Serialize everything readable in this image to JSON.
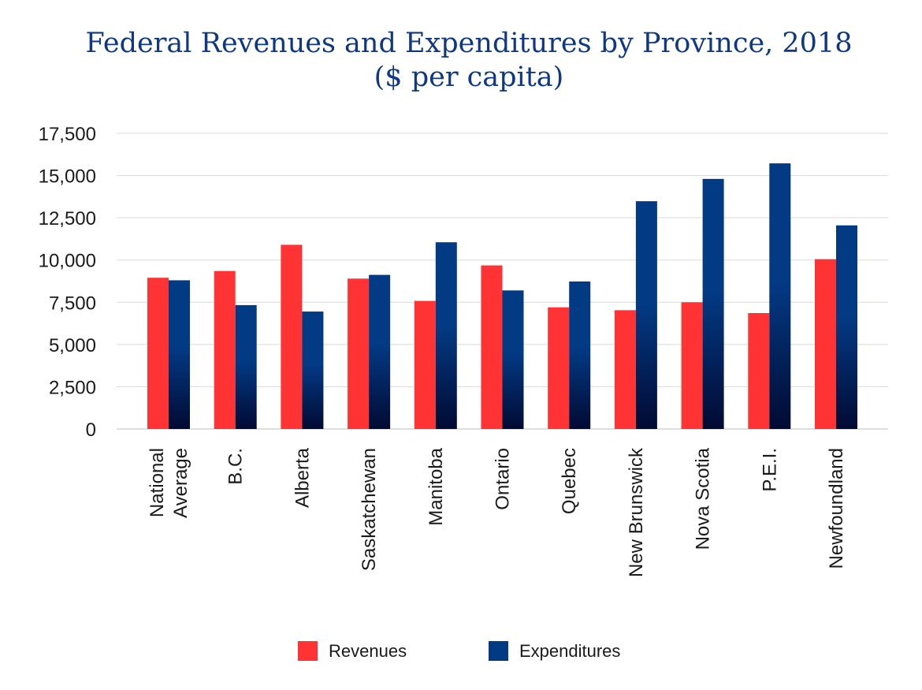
{
  "chart_data": {
    "type": "bar",
    "title": [
      "Federal Revenues and Expenditures by Province, 2018",
      "($ per capita)"
    ],
    "categories": [
      [
        "National",
        "Average"
      ],
      [
        "B.C."
      ],
      [
        "Alberta"
      ],
      [
        "Saskatchewan"
      ],
      [
        "Manitoba"
      ],
      [
        "Ontario"
      ],
      [
        "Quebec"
      ],
      [
        "New Brunswick"
      ],
      [
        "Nova Scotia"
      ],
      [
        "P.E.I."
      ],
      [
        "Newfoundland"
      ]
    ],
    "series": [
      {
        "name": "Revenues",
        "color": "#ff3333",
        "values": [
          8950,
          9350,
          10900,
          8900,
          7580,
          9680,
          7200,
          7030,
          7500,
          6860,
          10050
        ]
      },
      {
        "name": "Expenditures",
        "color": "#033a84",
        "values": [
          8800,
          7330,
          6950,
          9120,
          11050,
          8200,
          8730,
          13480,
          14800,
          15720,
          12050
        ]
      }
    ],
    "ylim": [
      0,
      17500
    ],
    "yticks": [
      "0",
      "2,500",
      "5,000",
      "7,500",
      "10,000",
      "12,500",
      "15,000",
      "17,500"
    ],
    "xlabel": "",
    "ylabel": "",
    "grid": true,
    "legend": "bottom-center"
  }
}
